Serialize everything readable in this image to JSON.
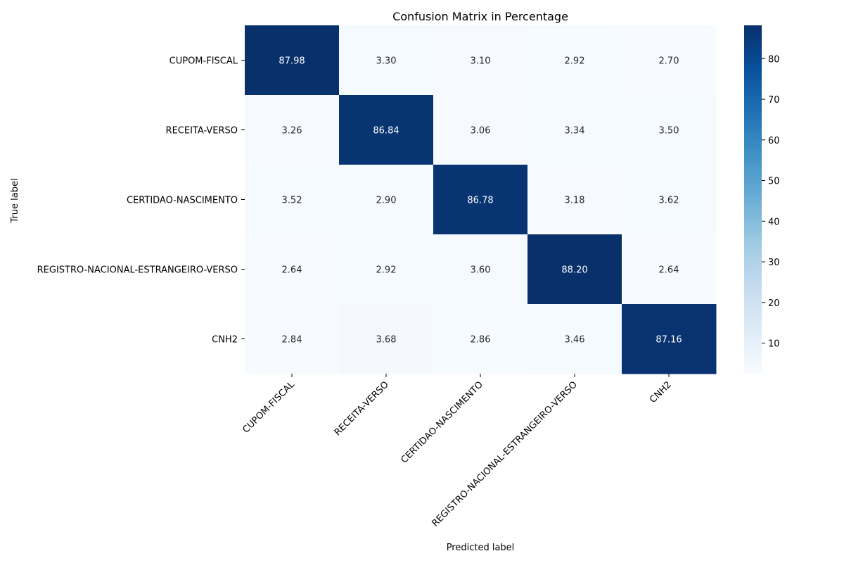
{
  "chart_data": {
    "type": "heatmap",
    "title": "Confusion Matrix in Percentage",
    "xlabel": "Predicted label",
    "ylabel": "True label",
    "x_categories": [
      "CUPOM-FISCAL",
      "RECEITA-VERSO",
      "CERTIDAO-NASCIMENTO",
      "REGISTRO-NACIONAL-ESTRANGEIRO-VERSO",
      "CNH2"
    ],
    "y_categories": [
      "CUPOM-FISCAL",
      "RECEITA-VERSO",
      "CERTIDAO-NASCIMENTO",
      "REGISTRO-NACIONAL-ESTRANGEIRO-VERSO",
      "CNH2"
    ],
    "values": [
      [
        87.98,
        3.3,
        3.1,
        2.92,
        2.7
      ],
      [
        3.26,
        86.84,
        3.06,
        3.34,
        3.5
      ],
      [
        3.52,
        2.9,
        86.78,
        3.18,
        3.62
      ],
      [
        2.64,
        2.92,
        3.6,
        88.2,
        2.64
      ],
      [
        2.84,
        3.68,
        2.86,
        3.46,
        87.16
      ]
    ],
    "value_format": "0.00",
    "colormap": "Blues",
    "colorbar": {
      "range": [
        2.64,
        88.2
      ],
      "ticks": [
        10,
        20,
        30,
        40,
        50,
        60,
        70,
        80
      ]
    },
    "colors": {
      "low": "#f7fbff",
      "high": "#08306b",
      "text_dark": "#262626",
      "text_light": "#ffffff"
    }
  }
}
